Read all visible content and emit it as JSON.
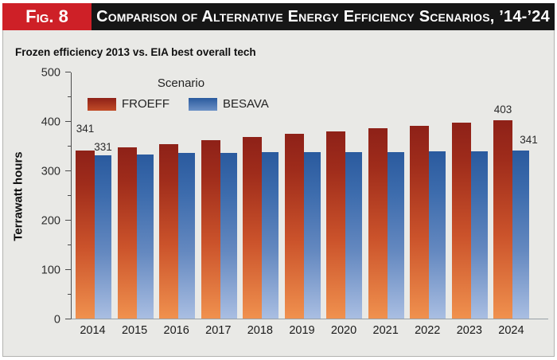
{
  "figure": {
    "fig_label": "Fig. 8",
    "title": "Comparison of Alternative Energy Efficiency Scenarios, ’14-’24",
    "subtitle": "Frozen efficiency 2013 vs. EIA best overall tech"
  },
  "colors": {
    "header_red": "#ce2027",
    "header_black": "#161616",
    "panel_bg": "#e9e9e6",
    "panel_border": "#b3b3b0",
    "froeff_top": "#8e2118",
    "froeff_mid": "#cb532b",
    "froeff_bottom": "#f0914e",
    "besava_top": "#2a5a9e",
    "besava_mid": "#6589c0",
    "besava_bottom": "#a9bee2",
    "axis_line": "#4c4c4c",
    "baseline": "#97a0a6"
  },
  "chart_data": {
    "type": "bar",
    "title": "Comparison of Alternative Energy Efficiency Scenarios, ’14-’24",
    "subtitle": "Frozen efficiency 2013 vs. EIA best overall tech",
    "legend_title": "Scenario",
    "legend_position": "top-left-inside",
    "xlabel": "",
    "ylabel": "Terrawatt hours",
    "ylim": [
      0,
      500
    ],
    "yticks_major": [
      0,
      100,
      200,
      300,
      400,
      500
    ],
    "yticks_minor": [
      50,
      150,
      250,
      350,
      450
    ],
    "grid": false,
    "categories": [
      "2014",
      "2015",
      "2016",
      "2017",
      "2018",
      "2019",
      "2020",
      "2021",
      "2022",
      "2023",
      "2024"
    ],
    "series": [
      {
        "name": "FROEFF",
        "values": [
          341,
          348,
          355,
          362,
          369,
          375,
          381,
          387,
          392,
          398,
          403
        ]
      },
      {
        "name": "BESAVA",
        "values": [
          331,
          334,
          336,
          337,
          338,
          338,
          339,
          339,
          340,
          340,
          341
        ]
      }
    ],
    "value_labels": [
      {
        "category": "2014",
        "series": "FROEFF",
        "text": "341"
      },
      {
        "category": "2014",
        "series": "BESAVA",
        "text": "331"
      },
      {
        "category": "2024",
        "series": "FROEFF",
        "text": "403"
      },
      {
        "category": "2024",
        "series": "BESAVA",
        "text": "341"
      }
    ]
  }
}
